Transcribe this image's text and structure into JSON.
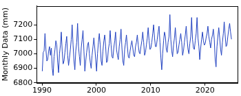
{
  "chart_data": {
    "type": "line",
    "y_label": "Monthly Data (mm)",
    "color": "#2040c0",
    "grid": false,
    "xlim": [
      1989,
      2026
    ],
    "xticks": [
      1990,
      2000,
      2010,
      2020
    ],
    "ylim": [
      6800,
      7330
    ],
    "yticks": [
      6800,
      6900,
      7000,
      7100,
      7200
    ],
    "x": [
      1990.04,
      1990.21,
      1990.38,
      1990.54,
      1990.71,
      1990.88,
      1991.04,
      1991.21,
      1991.38,
      1991.54,
      1991.71,
      1991.88,
      1992.04,
      1992.21,
      1992.38,
      1992.54,
      1992.71,
      1992.88,
      1993.04,
      1993.21,
      1993.38,
      1993.54,
      1993.71,
      1993.88,
      1994.04,
      1994.21,
      1994.38,
      1994.54,
      1994.71,
      1994.88,
      1995.04,
      1995.21,
      1995.38,
      1995.54,
      1995.71,
      1995.88,
      1996.04,
      1996.21,
      1996.38,
      1996.54,
      1996.71,
      1996.88,
      1997.04,
      1997.21,
      1997.38,
      1997.54,
      1997.71,
      1997.88,
      1998.04,
      1998.21,
      1998.38,
      1998.54,
      1998.71,
      1998.88,
      1999.04,
      1999.21,
      1999.38,
      1999.54,
      1999.71,
      1999.88,
      2000.04,
      2000.21,
      2000.38,
      2000.54,
      2000.71,
      2000.88,
      2001.04,
      2001.21,
      2001.38,
      2001.54,
      2001.71,
      2001.88,
      2002.04,
      2002.21,
      2002.38,
      2002.54,
      2002.71,
      2002.88,
      2003.04,
      2003.21,
      2003.38,
      2003.54,
      2003.71,
      2003.88,
      2004.04,
      2004.21,
      2004.38,
      2004.54,
      2004.71,
      2004.88,
      2005.04,
      2005.21,
      2005.38,
      2005.54,
      2005.71,
      2005.88,
      2006.04,
      2006.21,
      2006.38,
      2006.54,
      2006.71,
      2006.88,
      2007.04,
      2007.21,
      2007.38,
      2007.54,
      2007.71,
      2007.88,
      2008.04,
      2008.21,
      2008.38,
      2008.54,
      2008.71,
      2008.88,
      2009.04,
      2009.21,
      2009.38,
      2009.54,
      2009.71,
      2009.88,
      2010.04,
      2010.21,
      2010.38,
      2010.54,
      2010.71,
      2010.88,
      2011.04,
      2011.21,
      2011.38,
      2011.54,
      2011.71,
      2011.88,
      2012.04,
      2012.21,
      2012.38,
      2012.54,
      2012.71,
      2012.88,
      2013.04,
      2013.21,
      2013.38,
      2013.54,
      2013.71,
      2013.88,
      2014.04,
      2014.21,
      2014.38,
      2014.54,
      2014.71,
      2014.88,
      2015.04,
      2015.21,
      2015.38,
      2015.54,
      2015.71,
      2015.88,
      2016.04,
      2016.21,
      2016.38,
      2016.54,
      2016.71,
      2016.88,
      2017.04,
      2017.21,
      2017.38,
      2017.54,
      2017.71,
      2017.88,
      2018.04,
      2018.21,
      2018.38,
      2018.54,
      2018.71,
      2018.88,
      2019.04,
      2019.21,
      2019.38,
      2019.54,
      2019.71,
      2019.88,
      2020.04,
      2020.21,
      2020.38,
      2020.54,
      2020.71,
      2020.88,
      2021.04,
      2021.21,
      2021.38,
      2021.54,
      2021.71,
      2021.88,
      2022.04,
      2022.21,
      2022.38,
      2022.54,
      2022.71,
      2022.88,
      2023.04,
      2023.21,
      2023.38,
      2023.54,
      2023.71,
      2023.88,
      2024.04,
      2024.21,
      2024.38,
      2024.54,
      2024.71,
      2024.88
    ],
    "values": [
      6880,
      7010,
      7020,
      7140,
      7030,
      6950,
      6960,
      7020,
      7050,
      6990,
      7040,
      6900,
      6850,
      6980,
      7030,
      7090,
      7060,
      6940,
      6870,
      7000,
      7060,
      7150,
      7020,
      6930,
      6950,
      7010,
      7070,
      7120,
      6990,
      6920,
      6970,
      7030,
      7100,
      7200,
      7060,
      6950,
      6890,
      7020,
      7080,
      7210,
      7050,
      6980,
      6920,
      7040,
      7100,
      7160,
      7020,
      6880,
      6950,
      7010,
      7060,
      7080,
      7000,
      6940,
      6900,
      6990,
      7050,
      7110,
      7040,
      6960,
      6880,
      7000,
      7080,
      7140,
      7060,
      6950,
      6920,
      7020,
      7090,
      7130,
      7050,
      6940,
      6950,
      7030,
      7070,
      7160,
      7060,
      6980,
      6970,
      7040,
      7090,
      7150,
      7030,
      6990,
      6960,
      7050,
      7100,
      7170,
      7040,
      6950,
      6920,
      7030,
      7080,
      7130,
      7050,
      6980,
      6970,
      7020,
      7060,
      7090,
      7040,
      6990,
      6980,
      7050,
      7080,
      7130,
      7060,
      7010,
      7000,
      7050,
      7090,
      7150,
      7080,
      6990,
      7010,
      7060,
      7110,
      7180,
      7090,
      7030,
      7040,
      7080,
      7140,
      7200,
      7110,
      7050,
      7050,
      7100,
      7150,
      7190,
      7080,
      6970,
      6890,
      7000,
      7090,
      7150,
      7120,
      7030,
      7010,
      7080,
      7120,
      7270,
      7100,
      7020,
      6980,
      7060,
      7110,
      7180,
      7090,
      7000,
      7010,
      7060,
      7100,
      7140,
      7080,
      6990,
      7020,
      7080,
      7130,
      7190,
      7100,
      7030,
      7000,
      7070,
      7120,
      7250,
      7100,
      7040,
      7030,
      7090,
      7140,
      7250,
      7110,
      7050,
      6960,
      7040,
      7100,
      7150,
      7090,
      7060,
      7070,
      7110,
      7140,
      7190,
      7120,
      7080,
      7040,
      7100,
      7130,
      7170,
      7100,
      6960,
      6910,
      7050,
      7120,
      7180,
      7110,
      7030,
      6990,
      7080,
      7140,
      7220,
      7130,
      7050,
      7060,
      7120,
      7170,
      7210,
      7150,
      7100
    ]
  }
}
